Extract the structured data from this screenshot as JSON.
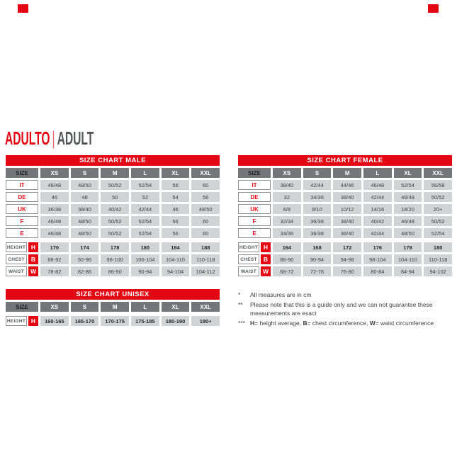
{
  "page": {
    "title_primary": "ADULTO",
    "title_separator": "|",
    "title_secondary": "ADULT"
  },
  "colors": {
    "accent_red": "#e30613",
    "header_gray": "#737578",
    "cell_gray": "#d2d3d5",
    "text_dark": "#3f4042"
  },
  "tables": {
    "male": {
      "title": "SIZE CHART MALE",
      "size_header": "SIZE",
      "columns": [
        "XS",
        "S",
        "M",
        "L",
        "XL",
        "XXL"
      ],
      "country_rows": [
        {
          "label": "IT",
          "values": [
            "46/48",
            "48/50",
            "50/52",
            "52/54",
            "56",
            "60"
          ]
        },
        {
          "label": "DE",
          "values": [
            "46",
            "48",
            "50",
            "52",
            "54",
            "56"
          ]
        },
        {
          "label": "UK",
          "values": [
            "36/38",
            "38/40",
            "40/42",
            "42/44",
            "46",
            "48/50"
          ]
        },
        {
          "label": "F",
          "values": [
            "46/48",
            "48/50",
            "50/52",
            "52/54",
            "56",
            "60"
          ]
        },
        {
          "label": "E",
          "values": [
            "46/48",
            "48/50",
            "50/52",
            "52/54",
            "56",
            "60"
          ]
        }
      ],
      "measure_rows": [
        {
          "label": "HEIGHT",
          "letter": "H",
          "values": [
            "170",
            "174",
            "178",
            "180",
            "184",
            "188"
          ]
        },
        {
          "label": "CHEST",
          "letter": "B",
          "values": [
            "88-92",
            "92-96",
            "96-100",
            "100-104",
            "104-110",
            "110-118"
          ]
        },
        {
          "label": "WAIST",
          "letter": "W",
          "values": [
            "78-82",
            "82-86",
            "86-90",
            "90-94",
            "94-104",
            "104-112"
          ]
        }
      ]
    },
    "female": {
      "title": "SIZE CHART FEMALE",
      "size_header": "SIZE",
      "columns": [
        "XS",
        "S",
        "M",
        "L",
        "XL",
        "XXL"
      ],
      "country_rows": [
        {
          "label": "IT",
          "values": [
            "38/40",
            "42/44",
            "44/46",
            "46/48",
            "52/54",
            "56/58"
          ]
        },
        {
          "label": "DE",
          "values": [
            "32",
            "34/36",
            "38/40",
            "42/44",
            "46/48",
            "50/52"
          ]
        },
        {
          "label": "UK",
          "values": [
            "6/8",
            "8/10",
            "10/12",
            "14/16",
            "18/20",
            "20+"
          ]
        },
        {
          "label": "F",
          "values": [
            "32/34",
            "36/38",
            "38/40",
            "40/42",
            "46/48",
            "50/52"
          ]
        },
        {
          "label": "E",
          "values": [
            "34/36",
            "36/38",
            "38/40",
            "42/44",
            "48/50",
            "52/54"
          ]
        }
      ],
      "measure_rows": [
        {
          "label": "HEIGHT",
          "letter": "H",
          "values": [
            "164",
            "168",
            "172",
            "176",
            "178",
            "180"
          ]
        },
        {
          "label": "CHEST",
          "letter": "B",
          "values": [
            "86-90",
            "90-94",
            "94-98",
            "98-104",
            "104-110",
            "110-118"
          ]
        },
        {
          "label": "WAIST",
          "letter": "W",
          "values": [
            "68-72",
            "72-76",
            "76-80",
            "80-84",
            "84-94",
            "94-102"
          ]
        }
      ]
    },
    "unisex": {
      "title": "SIZE CHART UNISEX",
      "size_header": "SIZE",
      "columns": [
        "XS",
        "S",
        "M",
        "L",
        "XL",
        "XXL"
      ],
      "measure_rows": [
        {
          "label": "HEIGHT",
          "letter": "H",
          "values": [
            "160-165",
            "165-170",
            "170-175",
            "175-185",
            "180-190",
            "190+"
          ]
        }
      ]
    }
  },
  "footnotes": {
    "note1": {
      "marker": "*",
      "text": "All measures are in cm"
    },
    "note2": {
      "marker": "**",
      "text": "Please note that this is a guide only and we can not guarantee these measurements are exact"
    },
    "note3": {
      "marker": "***",
      "h_label": "H",
      "h_text": "= height average, ",
      "b_label": "B",
      "b_text": "= chest circumference, ",
      "w_label": "W",
      "w_text": "= waist circumference"
    }
  }
}
